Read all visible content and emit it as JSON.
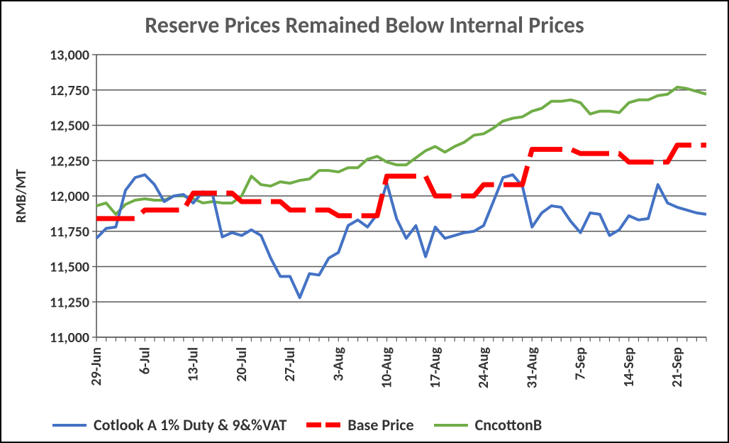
{
  "chart": {
    "type": "line",
    "title": "Reserve Prices Remained Below Internal Prices",
    "title_fontsize": 32,
    "title_color": "#595959",
    "ylabel": "RMB/MT",
    "ylabel_fontsize": 20,
    "ylim": [
      11000,
      13000
    ],
    "ytick_step": 250,
    "yticks": [
      "11,000",
      "11,250",
      "11,500",
      "11,750",
      "12,000",
      "12,250",
      "12,500",
      "12,750",
      "13,000"
    ],
    "xticks": [
      "29-Jun",
      "6-Jul",
      "13-Jul",
      "20-Jul",
      "27-Jul",
      "3-Aug",
      "10-Aug",
      "17-Aug",
      "24-Aug",
      "31-Aug",
      "7-Sep",
      "14-Sep",
      "21-Sep"
    ],
    "x_count": 64,
    "background_color": "#ffffff",
    "frame_color": "#000000",
    "axis_line_color": "#595959",
    "grid_color": "#595959",
    "tick_mark_color": "#595959",
    "axis_text_color": "#333333",
    "axis_fontsize": 20,
    "series": {
      "cotlook": {
        "label": "Cotlook A 1% Duty & 9&%VAT",
        "color": "#4472c4",
        "line_width": 4,
        "values": [
          11700,
          11770,
          11780,
          12040,
          12130,
          12150,
          12080,
          11960,
          12000,
          12010,
          11950,
          12030,
          12010,
          11710,
          11740,
          11720,
          11760,
          11720,
          11560,
          11430,
          11430,
          11280,
          11450,
          11440,
          11560,
          11600,
          11790,
          11830,
          11780,
          11870,
          12090,
          11840,
          11700,
          11790,
          11570,
          11780,
          11700,
          11720,
          11740,
          11750,
          11790,
          11960,
          12130,
          12150,
          12070,
          11780,
          11880,
          11930,
          11920,
          11820,
          11740,
          11880,
          11870,
          11720,
          11760,
          11860,
          11830,
          11840,
          12080,
          11950,
          11920,
          11900,
          11880,
          11870
        ]
      },
      "base": {
        "label": "Base Price",
        "color": "#ff0000",
        "line_width": 7,
        "dash": true,
        "values": [
          11840,
          11840,
          11840,
          11840,
          11840,
          11900,
          11900,
          11900,
          11900,
          11900,
          12020,
          12020,
          12020,
          12020,
          12020,
          11960,
          11960,
          11960,
          11960,
          11960,
          11900,
          11900,
          11900,
          11900,
          11900,
          11860,
          11860,
          11860,
          11860,
          11860,
          12140,
          12140,
          12140,
          12140,
          12140,
          12000,
          12000,
          12000,
          12000,
          12000,
          12080,
          12080,
          12080,
          12080,
          12080,
          12330,
          12330,
          12330,
          12330,
          12330,
          12300,
          12300,
          12300,
          12300,
          12300,
          12240,
          12240,
          12240,
          12240,
          12240,
          12360,
          12360,
          12360,
          12360
        ]
      },
      "cncotton": {
        "label": "CncottonB",
        "color": "#70ad47",
        "line_width": 4,
        "values": [
          11930,
          11950,
          11870,
          11940,
          11970,
          11980,
          11970,
          11970,
          12000,
          12000,
          11980,
          11950,
          11960,
          11950,
          11950,
          12000,
          12140,
          12080,
          12070,
          12100,
          12090,
          12110,
          12120,
          12180,
          12180,
          12170,
          12200,
          12200,
          12260,
          12280,
          12240,
          12220,
          12220,
          12270,
          12320,
          12350,
          12310,
          12350,
          12380,
          12430,
          12440,
          12480,
          12530,
          12550,
          12560,
          12600,
          12620,
          12670,
          12670,
          12680,
          12660,
          12580,
          12600,
          12600,
          12590,
          12660,
          12680,
          12680,
          12710,
          12720,
          12770,
          12760,
          12740,
          12720
        ]
      }
    },
    "legend": {
      "position": "bottom",
      "fontsize": 22,
      "item_gap": 28,
      "swatch_width": 48
    }
  }
}
